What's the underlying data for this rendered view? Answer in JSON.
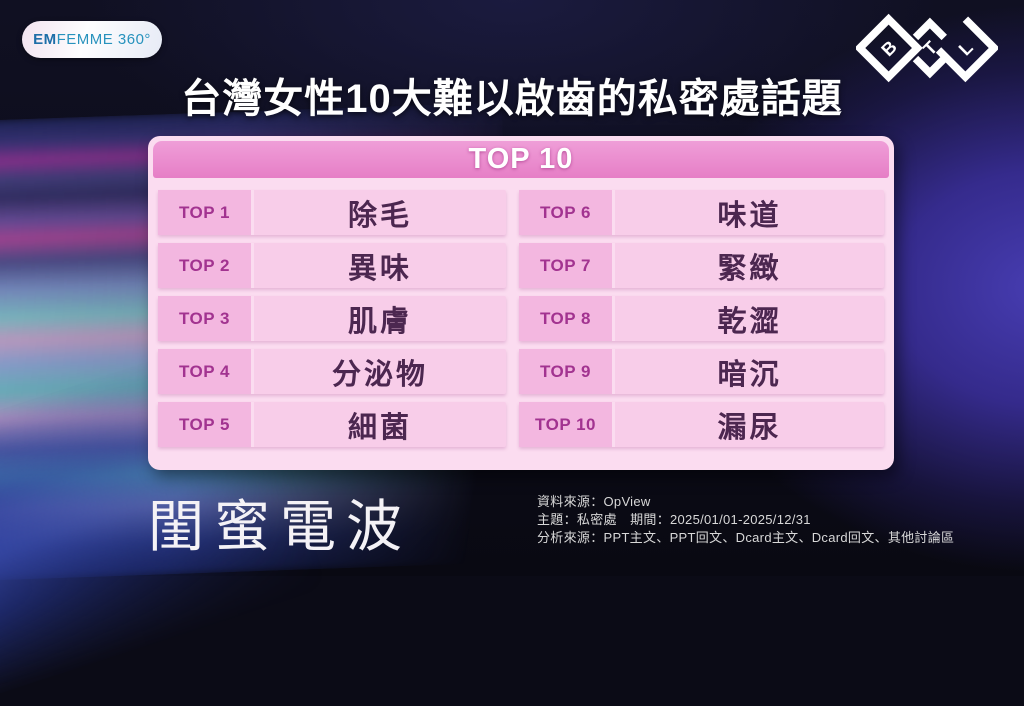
{
  "logos": {
    "brand_badge": {
      "bold_part": "EM",
      "rest_part": "FEMME 360°"
    },
    "btl": {
      "letters": [
        "B",
        "T",
        "L"
      ]
    }
  },
  "title": "台灣女性10大難以啟齒的私密處話題",
  "ranking": {
    "header": "TOP 10",
    "left_column": [
      {
        "rank": "TOP 1",
        "topic": "除毛"
      },
      {
        "rank": "TOP 2",
        "topic": "異味"
      },
      {
        "rank": "TOP 3",
        "topic": "肌膚"
      },
      {
        "rank": "TOP 4",
        "topic": "分泌物"
      },
      {
        "rank": "TOP 5",
        "topic": "細菌"
      }
    ],
    "right_column": [
      {
        "rank": "TOP 6",
        "topic": "味道"
      },
      {
        "rank": "TOP 7",
        "topic": "緊緻"
      },
      {
        "rank": "TOP 8",
        "topic": "乾澀"
      },
      {
        "rank": "TOP 9",
        "topic": "暗沉"
      },
      {
        "rank": "TOP 10",
        "topic": "漏尿"
      }
    ]
  },
  "footer": {
    "brand_name": "閨蜜電波",
    "source_lines": [
      "資料來源：OpView",
      "主題：私密處　期間：2025/01/01-2025/12/31",
      "分析來源：PPT主文、PPT回文、Dcard主文、Dcard回文、其他討論區"
    ]
  },
  "colors": {
    "panel_pink": "#fbdcf0",
    "header_pink": "#e783c8",
    "row_pink": "#f8cde9",
    "label_pink": "#f3b7e0",
    "rank_text": "#a23390",
    "topic_text": "#4c2750",
    "badge_text": "#2792bd",
    "right_glow": "#473db2"
  }
}
